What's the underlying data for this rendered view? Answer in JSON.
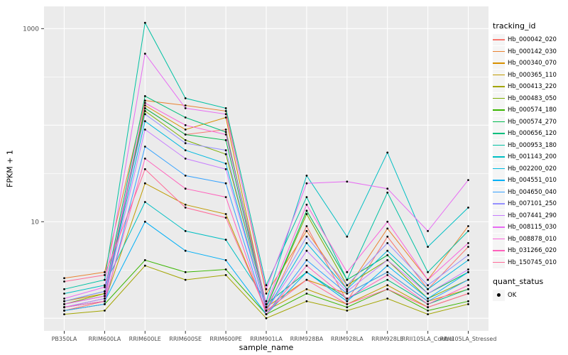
{
  "figure": {
    "bg": "#FFFFFF",
    "panel_bg": "#EBEBEB",
    "grid_color": "#FFFFFF",
    "axis_text_color": "#4D4D4D",
    "tick_color": "#333333"
  },
  "axes": {
    "x_title": "sample_name",
    "y_title": "FPKM + 1",
    "y_ticks": [
      {
        "label": "1000",
        "value": 1000
      },
      {
        "label": "10",
        "value": 10
      }
    ],
    "y_grid_major": [
      1,
      10,
      100,
      1000
    ],
    "y_grid_minor": [
      3.16,
      31.6,
      316
    ]
  },
  "legend": {
    "tracking_title": "tracking_id",
    "quant_title": "quant_status",
    "quant_items": [
      {
        "label": "OK",
        "shape": "point",
        "color": "#000000"
      }
    ]
  },
  "chart_data": {
    "type": "line",
    "x_type": "categorical",
    "log_y": true,
    "ylim": [
      0.74,
      1700
    ],
    "title": "",
    "xlabel": "sample_name",
    "ylabel": "FPKM + 1",
    "point_color": "#000000",
    "legend_position": "right",
    "grid": true,
    "categories": [
      "PB350LA",
      "RRIM600LA",
      "RRIM600LE",
      "RRIM600SE",
      "RRIM600PE",
      "RRIM901LA",
      "RRIM928BA",
      "RRIM928LA",
      "RRIM928LE",
      "RRII105LA_Control",
      "RRII105LA_Stressed"
    ],
    "series": [
      {
        "name": "Hb_000042_020",
        "color": "#F8766D",
        "values": [
          1.2,
          1.5,
          150,
          80,
          90,
          1.2,
          9,
          1.5,
          7,
          2,
          5.5
        ]
      },
      {
        "name": "Hb_000142_030",
        "color": "#EA8331",
        "values": [
          2.6,
          3,
          180,
          160,
          140,
          1.8,
          8,
          2,
          8.5,
          2.5,
          9
        ]
      },
      {
        "name": "Hb_000340_070",
        "color": "#D89000",
        "values": [
          1.5,
          1.8,
          160,
          90,
          120,
          1.3,
          2.5,
          1.8,
          3,
          1.5,
          2
        ]
      },
      {
        "name": "Hb_000365_110",
        "color": "#C09B00",
        "values": [
          1.3,
          1.5,
          25,
          15,
          12,
          1.2,
          2,
          1.4,
          2.2,
          1.3,
          1.8
        ]
      },
      {
        "name": "Hb_000413_220",
        "color": "#A3A500",
        "values": [
          1.1,
          1.2,
          3.5,
          2.5,
          2.8,
          1.0,
          1.5,
          1.2,
          1.6,
          1.1,
          1.4
        ]
      },
      {
        "name": "Hb_000483_050",
        "color": "#7CAE00",
        "values": [
          1.4,
          1.8,
          140,
          70,
          50,
          1.3,
          12,
          2.2,
          4,
          1.6,
          2.5
        ]
      },
      {
        "name": "Hb_000574_180",
        "color": "#39B600",
        "values": [
          1.2,
          1.4,
          4,
          3,
          3.2,
          1.1,
          1.8,
          1.3,
          2,
          1.2,
          1.5
        ]
      },
      {
        "name": "Hb_000574_270",
        "color": "#00BB4E",
        "values": [
          1.3,
          1.6,
          150,
          80,
          70,
          1.3,
          13,
          2.5,
          4.5,
          1.8,
          3
        ]
      },
      {
        "name": "Hb_000656_120",
        "color": "#00BF7D",
        "values": [
          1.5,
          1.9,
          200,
          120,
          85,
          1.4,
          3,
          1.6,
          2.5,
          1.4,
          2
        ]
      },
      {
        "name": "Hb_000953_180",
        "color": "#00C1A3",
        "values": [
          2.0,
          2.5,
          1150,
          190,
          150,
          2.2,
          18,
          2.5,
          20,
          3,
          8
        ]
      },
      {
        "name": "Hb_001143_200",
        "color": "#00BFC4",
        "values": [
          1.8,
          2.2,
          16,
          8,
          6.5,
          1.5,
          30,
          7,
          52,
          5.5,
          14
        ]
      },
      {
        "name": "Hb_002200_020",
        "color": "#00BAE0",
        "values": [
          1.4,
          1.7,
          110,
          55,
          40,
          1.2,
          6,
          2,
          5,
          2,
          4
        ]
      },
      {
        "name": "Hb_004551_010",
        "color": "#00B0F6",
        "values": [
          1.3,
          1.5,
          10,
          5,
          4,
          1.1,
          3,
          1.5,
          3.5,
          1.6,
          3
        ]
      },
      {
        "name": "Hb_004650_040",
        "color": "#35A2FF",
        "values": [
          1.2,
          1.4,
          60,
          30,
          25,
          1.1,
          4,
          1.8,
          3,
          1.5,
          2.5
        ]
      },
      {
        "name": "Hb_007101_250",
        "color": "#9590FF",
        "values": [
          1.5,
          1.9,
          130,
          65,
          55,
          1.3,
          7,
          2.2,
          6,
          2.2,
          4.5
        ]
      },
      {
        "name": "Hb_007441_290",
        "color": "#C77CFF",
        "values": [
          1.3,
          1.6,
          90,
          45,
          35,
          1.2,
          5,
          1.9,
          4,
          1.8,
          3.2
        ]
      },
      {
        "name": "Hb_008115_030",
        "color": "#E76BF3",
        "values": [
          1.6,
          2.1,
          550,
          150,
          130,
          2.0,
          25,
          26,
          22,
          8,
          27
        ]
      },
      {
        "name": "Hb_008878_010",
        "color": "#FA62DB",
        "values": [
          1.4,
          1.7,
          170,
          100,
          80,
          1.4,
          15,
          3,
          10,
          2.5,
          6
        ]
      },
      {
        "name": "Hb_031266_020",
        "color": "#FF62BC",
        "values": [
          1.3,
          1.5,
          45,
          22,
          18,
          1.1,
          3.5,
          1.6,
          2.8,
          1.4,
          2.2
        ]
      },
      {
        "name": "Hb_150745_010",
        "color": "#FF6A98",
        "values": [
          2.4,
          2.8,
          35,
          14,
          11,
          1.2,
          2.5,
          1.4,
          2,
          1.3,
          1.8
        ]
      }
    ]
  }
}
